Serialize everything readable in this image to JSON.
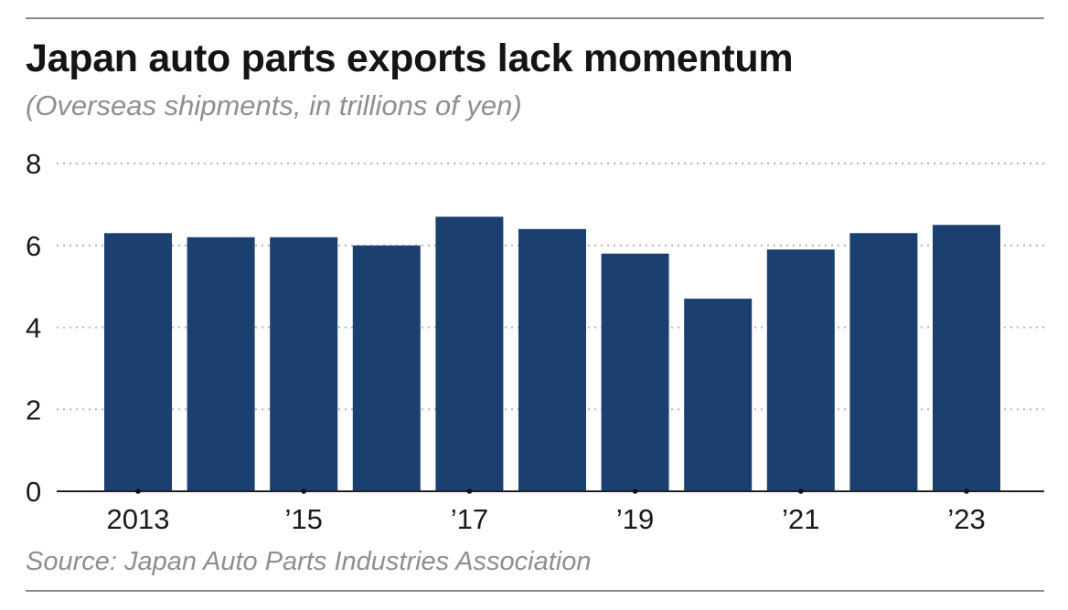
{
  "header": {
    "title": "Japan auto parts exports lack momentum",
    "subtitle": "(Overseas shipments, in trillions of yen)"
  },
  "footer": {
    "source": "Source: Japan Auto Parts Industries Association"
  },
  "chart_data": {
    "type": "bar",
    "title": "Japan auto parts exports lack momentum",
    "subtitle": "(Overseas shipments, in trillions of yen)",
    "categories": [
      "2013",
      "2014",
      "2015",
      "2016",
      "2017",
      "2018",
      "2019",
      "2020",
      "2021",
      "2022",
      "2023"
    ],
    "x_tick_labels": [
      "2013",
      "",
      "’15",
      "",
      "’17",
      "",
      "’19",
      "",
      "’21",
      "",
      "’23"
    ],
    "values": [
      6.3,
      6.2,
      6.2,
      6.0,
      6.7,
      6.4,
      5.8,
      4.7,
      5.9,
      6.3,
      6.5
    ],
    "y_ticks": [
      "0",
      "2",
      "4",
      "6",
      "8"
    ],
    "ylim": [
      0,
      8
    ],
    "xlabel": "",
    "ylabel": "",
    "grid": "horizontal dotted",
    "bar_color": "#1b3f6e",
    "grid_color": "#b5b5b5",
    "axis_color": "#222222",
    "source": "Source: Japan Auto Parts Industries Association"
  }
}
